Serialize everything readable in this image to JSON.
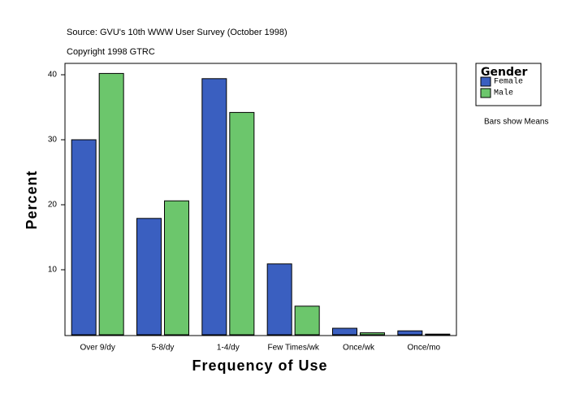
{
  "chart_data": {
    "type": "bar",
    "source": "Source: GVU's 10th WWW User Survey (October 1998)",
    "copyright": "Copyright 1998 GTRC",
    "note": "Bars show Means",
    "x_label": "Frequency of Use",
    "y_label": "Percent",
    "legend_title": "Gender",
    "categories": [
      "Over 9/dy",
      "5-8/dy",
      "1-4/dy",
      "Few Times/wk",
      "Once/wk",
      "Once/mo"
    ],
    "series": [
      {
        "name": "Female",
        "color": "#3a5fc0",
        "values": [
          30.0,
          17.9,
          39.4,
          10.9,
          1.0,
          0.6
        ]
      },
      {
        "name": "Male",
        "color": "#6cc66c",
        "values": [
          40.2,
          20.6,
          34.2,
          4.4,
          0.3,
          0.1
        ]
      }
    ],
    "ylim": [
      0,
      41.75
    ],
    "yticks": [
      10,
      20,
      30,
      40
    ],
    "grid": false
  }
}
